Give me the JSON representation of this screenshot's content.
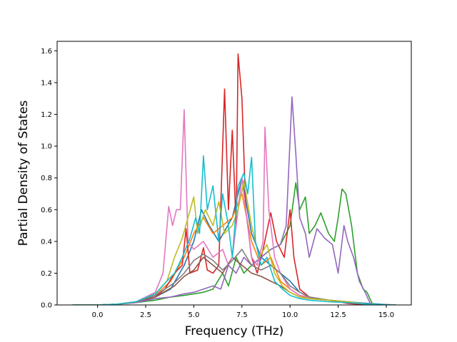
{
  "chart_data": {
    "type": "line",
    "xlabel": "Frequency (THz)",
    "ylabel": "Partial Density of States",
    "xlim": [
      -2.1,
      16.3
    ],
    "ylim": [
      0,
      1.66
    ],
    "xticks": [
      0.0,
      2.5,
      5.0,
      7.5,
      10.0,
      12.5,
      15.0
    ],
    "xtick_labels": [
      "0.0",
      "2.5",
      "5.0",
      "7.5",
      "10.0",
      "12.5",
      "15.0"
    ],
    "yticks": [
      0.0,
      0.2,
      0.4,
      0.6,
      0.8,
      1.0,
      1.2,
      1.4,
      1.6
    ],
    "ytick_labels": [
      "0.0",
      "0.2",
      "0.4",
      "0.6",
      "0.8",
      "1.0",
      "1.2",
      "1.4",
      "1.6"
    ],
    "grid": false,
    "legend": "none",
    "series": [
      {
        "color": "#1f77b4",
        "points": [
          [
            -1.3,
            0
          ],
          [
            0,
            0
          ],
          [
            1,
            0.005
          ],
          [
            2,
            0.02
          ],
          [
            3,
            0.05
          ],
          [
            3.8,
            0.1
          ],
          [
            4.5,
            0.25
          ],
          [
            5,
            0.4
          ],
          [
            5.4,
            0.6
          ],
          [
            5.8,
            0.5
          ],
          [
            6.3,
            0.4
          ],
          [
            7,
            0.55
          ],
          [
            7.5,
            0.8
          ],
          [
            8,
            0.45
          ],
          [
            8.5,
            0.3
          ],
          [
            9,
            0.25
          ],
          [
            9.5,
            0.2
          ],
          [
            10,
            0.15
          ],
          [
            10.5,
            0.08
          ],
          [
            11,
            0.05
          ],
          [
            12,
            0.03
          ],
          [
            13,
            0.02
          ],
          [
            14,
            0.01
          ],
          [
            15.5,
            0
          ]
        ]
      },
      {
        "color": "#ff7f0e",
        "points": [
          [
            -1.3,
            0
          ],
          [
            0,
            0
          ],
          [
            1,
            0.005
          ],
          [
            2,
            0.02
          ],
          [
            3,
            0.06
          ],
          [
            3.8,
            0.15
          ],
          [
            4.5,
            0.3
          ],
          [
            5,
            0.45
          ],
          [
            5.5,
            0.55
          ],
          [
            6,
            0.45
          ],
          [
            6.5,
            0.5
          ],
          [
            7,
            0.55
          ],
          [
            7.5,
            0.7
          ],
          [
            8,
            0.4
          ],
          [
            8.5,
            0.25
          ],
          [
            9,
            0.3
          ],
          [
            9.5,
            0.15
          ],
          [
            10,
            0.1
          ],
          [
            10.5,
            0.06
          ],
          [
            11,
            0.04
          ],
          [
            12,
            0.03
          ],
          [
            13,
            0.02
          ],
          [
            14,
            0.005
          ],
          [
            15.5,
            0
          ]
        ]
      },
      {
        "color": "#2ca02c",
        "points": [
          [
            -1.3,
            0
          ],
          [
            0,
            0
          ],
          [
            1,
            0.005
          ],
          [
            2,
            0.015
          ],
          [
            3,
            0.03
          ],
          [
            3.8,
            0.05
          ],
          [
            4.5,
            0.06
          ],
          [
            5,
            0.07
          ],
          [
            5.5,
            0.08
          ],
          [
            6,
            0.1
          ],
          [
            6.5,
            0.2
          ],
          [
            6.8,
            0.12
          ],
          [
            7.2,
            0.3
          ],
          [
            7.6,
            0.2
          ],
          [
            8,
            0.25
          ],
          [
            8.5,
            0.3
          ],
          [
            9,
            0.35
          ],
          [
            9.5,
            0.38
          ],
          [
            9.8,
            0.45
          ],
          [
            10,
            0.5
          ],
          [
            10.3,
            0.77
          ],
          [
            10.5,
            0.6
          ],
          [
            10.8,
            0.68
          ],
          [
            11,
            0.45
          ],
          [
            11.3,
            0.5
          ],
          [
            11.6,
            0.58
          ],
          [
            12,
            0.45
          ],
          [
            12.3,
            0.4
          ],
          [
            12.5,
            0.55
          ],
          [
            12.7,
            0.73
          ],
          [
            12.9,
            0.7
          ],
          [
            13.2,
            0.5
          ],
          [
            13.5,
            0.2
          ],
          [
            13.8,
            0.1
          ],
          [
            14,
            0.08
          ],
          [
            14.3,
            0
          ],
          [
            15.5,
            0
          ]
        ]
      },
      {
        "color": "#d62728",
        "points": [
          [
            -1.3,
            0
          ],
          [
            0,
            0
          ],
          [
            1,
            0.005
          ],
          [
            2,
            0.015
          ],
          [
            3,
            0.05
          ],
          [
            3.5,
            0.1
          ],
          [
            4,
            0.2
          ],
          [
            4.4,
            0.25
          ],
          [
            4.6,
            0.48
          ],
          [
            4.8,
            0.2
          ],
          [
            5.2,
            0.22
          ],
          [
            5.5,
            0.36
          ],
          [
            5.7,
            0.22
          ],
          [
            6,
            0.2
          ],
          [
            6.3,
            0.25
          ],
          [
            6.6,
            1.36
          ],
          [
            6.8,
            0.6
          ],
          [
            7,
            1.1
          ],
          [
            7.2,
            0.5
          ],
          [
            7.3,
            1.58
          ],
          [
            7.5,
            1.3
          ],
          [
            7.7,
            0.6
          ],
          [
            8,
            0.3
          ],
          [
            8.3,
            0.2
          ],
          [
            8.6,
            0.35
          ],
          [
            9,
            0.58
          ],
          [
            9.3,
            0.4
          ],
          [
            9.7,
            0.3
          ],
          [
            10,
            0.6
          ],
          [
            10.2,
            0.3
          ],
          [
            10.5,
            0.1
          ],
          [
            11,
            0.05
          ],
          [
            11.5,
            0.04
          ],
          [
            12,
            0.03
          ],
          [
            12.5,
            0.02
          ],
          [
            13,
            0.01
          ],
          [
            14,
            0
          ],
          [
            15.5,
            0
          ]
        ]
      },
      {
        "color": "#9467bd",
        "points": [
          [
            -1.3,
            0
          ],
          [
            0,
            0
          ],
          [
            1,
            0.005
          ],
          [
            2,
            0.015
          ],
          [
            3,
            0.04
          ],
          [
            3.8,
            0.05
          ],
          [
            4.5,
            0.07
          ],
          [
            5,
            0.08
          ],
          [
            5.5,
            0.1
          ],
          [
            6,
            0.12
          ],
          [
            6.4,
            0.1
          ],
          [
            6.8,
            0.25
          ],
          [
            7.2,
            0.2
          ],
          [
            7.6,
            0.3
          ],
          [
            8,
            0.25
          ],
          [
            8.5,
            0.3
          ],
          [
            9,
            0.35
          ],
          [
            9.5,
            0.38
          ],
          [
            9.8,
            0.5
          ],
          [
            10.1,
            1.31
          ],
          [
            10.3,
            0.95
          ],
          [
            10.5,
            0.55
          ],
          [
            10.8,
            0.45
          ],
          [
            11,
            0.3
          ],
          [
            11.4,
            0.48
          ],
          [
            11.8,
            0.42
          ],
          [
            12.2,
            0.38
          ],
          [
            12.5,
            0.2
          ],
          [
            12.8,
            0.5
          ],
          [
            13,
            0.4
          ],
          [
            13.3,
            0.3
          ],
          [
            13.6,
            0.15
          ],
          [
            13.9,
            0.08
          ],
          [
            14.2,
            0
          ],
          [
            15.5,
            0
          ]
        ]
      },
      {
        "color": "#8c564b",
        "points": [
          [
            -1.3,
            0
          ],
          [
            0,
            0
          ],
          [
            1,
            0.005
          ],
          [
            2,
            0.02
          ],
          [
            3,
            0.05
          ],
          [
            4,
            0.12
          ],
          [
            4.5,
            0.18
          ],
          [
            5,
            0.22
          ],
          [
            5.5,
            0.3
          ],
          [
            6,
            0.25
          ],
          [
            6.5,
            0.2
          ],
          [
            7,
            0.3
          ],
          [
            7.5,
            0.25
          ],
          [
            8,
            0.2
          ],
          [
            8.5,
            0.18
          ],
          [
            9,
            0.15
          ],
          [
            9.5,
            0.12
          ],
          [
            10,
            0.08
          ],
          [
            10.5,
            0.05
          ],
          [
            11,
            0.04
          ],
          [
            12,
            0.03
          ],
          [
            13,
            0.02
          ],
          [
            14,
            0.005
          ],
          [
            15.5,
            0
          ]
        ]
      },
      {
        "color": "#e377c2",
        "points": [
          [
            -1.3,
            0
          ],
          [
            0,
            0
          ],
          [
            1,
            0.005
          ],
          [
            2,
            0.02
          ],
          [
            3,
            0.08
          ],
          [
            3.4,
            0.2
          ],
          [
            3.7,
            0.62
          ],
          [
            3.9,
            0.5
          ],
          [
            4.1,
            0.6
          ],
          [
            4.3,
            0.6
          ],
          [
            4.5,
            1.23
          ],
          [
            4.7,
            0.4
          ],
          [
            5,
            0.35
          ],
          [
            5.5,
            0.4
          ],
          [
            6,
            0.3
          ],
          [
            6.5,
            0.35
          ],
          [
            6.8,
            0.25
          ],
          [
            7,
            0.3
          ],
          [
            7.5,
            0.8
          ],
          [
            8,
            0.3
          ],
          [
            8.3,
            0.25
          ],
          [
            8.6,
            0.4
          ],
          [
            8.7,
            1.12
          ],
          [
            8.9,
            0.6
          ],
          [
            9.2,
            0.3
          ],
          [
            9.5,
            0.2
          ],
          [
            10,
            0.1
          ],
          [
            10.5,
            0.06
          ],
          [
            11,
            0.05
          ],
          [
            11.5,
            0.04
          ],
          [
            12,
            0.03
          ],
          [
            13,
            0.02
          ],
          [
            14,
            0.005
          ],
          [
            15.5,
            0
          ]
        ]
      },
      {
        "color": "#7f7f7f",
        "points": [
          [
            -1.3,
            0
          ],
          [
            0,
            0
          ],
          [
            1,
            0.005
          ],
          [
            2,
            0.02
          ],
          [
            3,
            0.06
          ],
          [
            4,
            0.14
          ],
          [
            4.5,
            0.2
          ],
          [
            5,
            0.28
          ],
          [
            5.5,
            0.32
          ],
          [
            6,
            0.28
          ],
          [
            6.5,
            0.22
          ],
          [
            7,
            0.28
          ],
          [
            7.5,
            0.35
          ],
          [
            8,
            0.25
          ],
          [
            8.5,
            0.22
          ],
          [
            9,
            0.25
          ],
          [
            9.5,
            0.2
          ],
          [
            10,
            0.12
          ],
          [
            10.5,
            0.08
          ],
          [
            11,
            0.05
          ],
          [
            12,
            0.03
          ],
          [
            13,
            0.02
          ],
          [
            14,
            0.005
          ],
          [
            15.5,
            0
          ]
        ]
      },
      {
        "color": "#bcbd22",
        "points": [
          [
            -1.3,
            0
          ],
          [
            0,
            0
          ],
          [
            1,
            0.005
          ],
          [
            2,
            0.02
          ],
          [
            3,
            0.07
          ],
          [
            3.6,
            0.15
          ],
          [
            4,
            0.3
          ],
          [
            4.4,
            0.42
          ],
          [
            4.7,
            0.55
          ],
          [
            5,
            0.68
          ],
          [
            5.2,
            0.45
          ],
          [
            5.6,
            0.6
          ],
          [
            6,
            0.5
          ],
          [
            6.3,
            0.65
          ],
          [
            6.6,
            0.45
          ],
          [
            7,
            0.5
          ],
          [
            7.3,
            0.6
          ],
          [
            7.6,
            0.78
          ],
          [
            8,
            0.5
          ],
          [
            8.4,
            0.3
          ],
          [
            8.8,
            0.38
          ],
          [
            9.2,
            0.2
          ],
          [
            9.6,
            0.12
          ],
          [
            10,
            0.08
          ],
          [
            10.5,
            0.05
          ],
          [
            11,
            0.04
          ],
          [
            12,
            0.03
          ],
          [
            13,
            0.02
          ],
          [
            14,
            0.005
          ],
          [
            15.5,
            0
          ]
        ]
      },
      {
        "color": "#17becf",
        "points": [
          [
            -1.3,
            0
          ],
          [
            0,
            0
          ],
          [
            1,
            0.005
          ],
          [
            2,
            0.02
          ],
          [
            3,
            0.07
          ],
          [
            3.6,
            0.15
          ],
          [
            4,
            0.2
          ],
          [
            4.4,
            0.3
          ],
          [
            4.8,
            0.42
          ],
          [
            5.1,
            0.55
          ],
          [
            5.3,
            0.45
          ],
          [
            5.5,
            0.94
          ],
          [
            5.7,
            0.6
          ],
          [
            6,
            0.75
          ],
          [
            6.3,
            0.4
          ],
          [
            6.5,
            0.7
          ],
          [
            6.8,
            0.5
          ],
          [
            7,
            0.3
          ],
          [
            7.3,
            0.75
          ],
          [
            7.6,
            0.83
          ],
          [
            7.8,
            0.7
          ],
          [
            8,
            0.93
          ],
          [
            8.2,
            0.4
          ],
          [
            8.5,
            0.25
          ],
          [
            8.8,
            0.3
          ],
          [
            9.2,
            0.15
          ],
          [
            9.6,
            0.1
          ],
          [
            10,
            0.06
          ],
          [
            10.5,
            0.04
          ],
          [
            11,
            0.03
          ],
          [
            12,
            0.02
          ],
          [
            13,
            0.015
          ],
          [
            14,
            0.005
          ],
          [
            15.5,
            0
          ]
        ]
      }
    ]
  }
}
